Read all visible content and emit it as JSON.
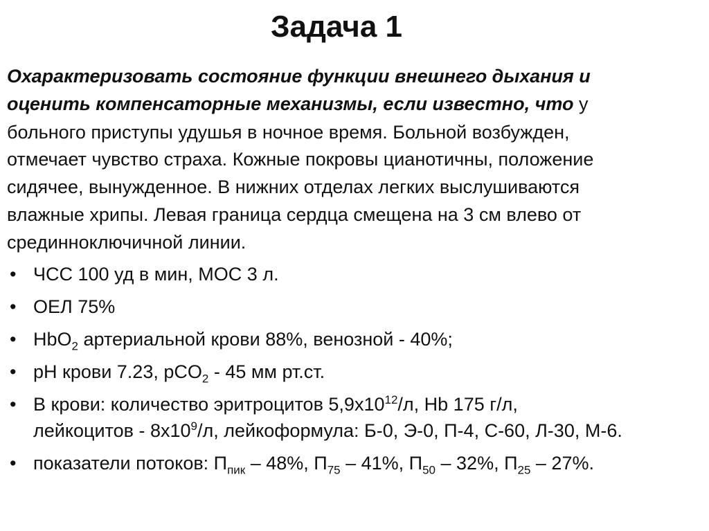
{
  "title": "Задача 1",
  "intro": {
    "l1": "Охарактеризовать состояние  функции внешнего дыхания и",
    "l2_bold": "оценить компенсаторные механизмы,  если известно,  что",
    "l2_rest": " у",
    "l3": "больного приступы удушья  в  ночное  время.  Больной возбужден,",
    "l4": "отмечает чувство страха.  Кожные покровы цианотичны,  положение",
    "l5": "сидячее, вынужденное. В нижних отделах легких выслушиваются",
    "l6": "влажные хрипы. Левая граница сердца смещена на 3 см влево от",
    "l7": "срединноключичной линии."
  },
  "bullets": {
    "symbol": "•",
    "b1": "ЧСС 100 уд в мин, МОС 3 л.",
    "b2": "ОЕЛ 75%",
    "b3": {
      "a": "HbO",
      "sub": "2",
      "b": " артериальной крови 88%, венозной - 40%;"
    },
    "b4": {
      "a": "pH крови 7.23, pCO",
      "sub": "2",
      "b": " - 45 мм рт.ст."
    },
    "b5": {
      "a": "В крови: количество эритроцитов  5,9x10",
      "sup": "12",
      "b": "/л,  Hb 175 г/л,"
    },
    "b5l2": {
      "a": "лейкоцитов - 8x10",
      "sup": "9",
      "b": "/л, лейкоформула: Б-0, Э-0, П-4, С-60, Л-30, М-6."
    },
    "b6": {
      "a": "показатели потоков: П",
      "s1": "пик",
      "b": " – 48%, П",
      "s2": "75",
      "c": " – 41%, П",
      "s3": "50",
      "d": " – 32%, П",
      "s4": "25",
      "e": " – 27%."
    }
  }
}
